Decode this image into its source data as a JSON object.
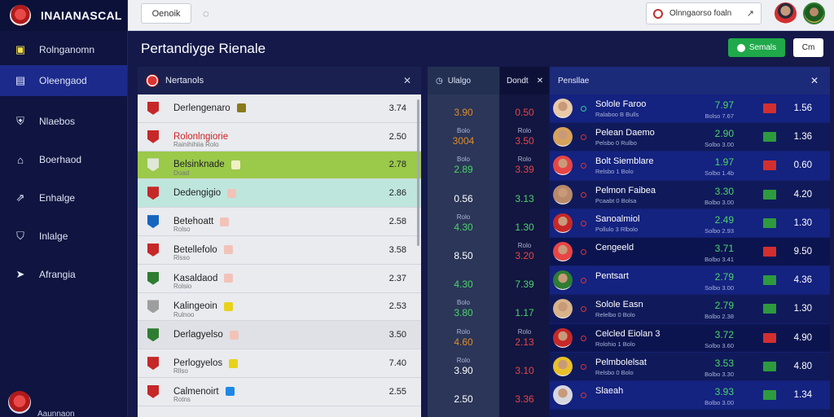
{
  "brand": {
    "name": "INAIANASCAL"
  },
  "sidebar": {
    "items": [
      {
        "label": "Rolnganomn",
        "icon": "building-icon",
        "active": false
      },
      {
        "label": "Oleengaod",
        "icon": "card-icon",
        "active": true
      },
      {
        "label": "Nlaebos",
        "icon": "shield-icon",
        "active": false
      },
      {
        "label": "Boerhaod",
        "icon": "home-icon",
        "active": false
      },
      {
        "label": "Enhalge",
        "icon": "chart-icon",
        "active": false
      },
      {
        "label": "Inlalge",
        "icon": "shirt-icon",
        "active": false
      },
      {
        "label": "Afrangia",
        "icon": "arrow-icon",
        "active": false
      }
    ],
    "footer_text": "Aaunnaon"
  },
  "topbar": {
    "button_label": "Oenoik",
    "search_text": "Olnngaorso foaln"
  },
  "page": {
    "title": "Pertandiyge Rienale",
    "green_button": "Semals",
    "white_button": "Cm"
  },
  "left_panel": {
    "title": "Nertanols",
    "rows": [
      {
        "name": "Derlengenaro",
        "sub": "",
        "value": "3.74",
        "style": "",
        "badge": "#c62828",
        "chip": "#8a7a1a"
      },
      {
        "name": "Rolonlngiorie",
        "sub": "Rainihihiia   Rolo",
        "value": "2.50",
        "style": "red",
        "badge": "#c62828",
        "chip": ""
      },
      {
        "name": "Belsinknade",
        "sub": "Doad",
        "value": "2.78",
        "style": "green",
        "badge": "#dfe8d6",
        "chip": "#f0f0c8"
      },
      {
        "name": "Dedengigio",
        "sub": "",
        "value": "2.86",
        "style": "mint",
        "badge": "#c62828",
        "chip": "#f2c3b8"
      },
      {
        "name": "Betehoatt",
        "sub": "Rolso",
        "value": "2.58",
        "style": "",
        "badge": "#1565c0",
        "chip": "#f2c3b8"
      },
      {
        "name": "Betellefolo",
        "sub": "Rlsso",
        "value": "3.58",
        "style": "",
        "badge": "#c62828",
        "chip": "#f2c3b8"
      },
      {
        "name": "Kasaldaod",
        "sub": "Rolsio",
        "value": "2.37",
        "style": "",
        "badge": "#2e7d32",
        "chip": "#f2c3b8"
      },
      {
        "name": "Kalingeoin",
        "sub": "Rulnoo",
        "value": "2.53",
        "style": "",
        "badge": "#9e9e9e",
        "chip": "#e8d21a"
      },
      {
        "name": "Derlagyelso",
        "sub": "",
        "value": "3.50",
        "style": "sel",
        "badge": "#2e7d32",
        "chip": "#f2c3b8"
      },
      {
        "name": "Perlogyelos",
        "sub": "Rllso",
        "value": "7.40",
        "style": "",
        "badge": "#c62828",
        "chip": "#e8d21a"
      },
      {
        "name": "Calmenoirt",
        "sub": "Rotns",
        "value": "2.55",
        "style": "",
        "badge": "#c62828",
        "chip": "#1e88e5"
      }
    ]
  },
  "mid_panel": {
    "title": "Ulalgo",
    "cells": [
      {
        "sub": "",
        "value": "3.90",
        "color": "#e08a2a"
      },
      {
        "sub": "Bolo",
        "value": "3004",
        "color": "#e08a2a"
      },
      {
        "sub": "Bolo",
        "value": "2.89",
        "color": "#4cd46a"
      },
      {
        "sub": "",
        "value": "0.56",
        "color": "#ffffff"
      },
      {
        "sub": "Rolo",
        "value": "4.30",
        "color": "#4cd46a"
      },
      {
        "sub": "",
        "value": "8.50",
        "color": "#ffffff"
      },
      {
        "sub": "",
        "value": "4.30",
        "color": "#4cd46a"
      },
      {
        "sub": "Bolo",
        "value": "3.80",
        "color": "#4cd46a"
      },
      {
        "sub": "Rolo",
        "value": "4.60",
        "color": "#e08a2a"
      },
      {
        "sub": "Rolo",
        "value": "3.90",
        "color": "#ffffff"
      },
      {
        "sub": "",
        "value": "2.50",
        "color": "#ffffff"
      }
    ]
  },
  "mid2_panel": {
    "title": "Dondt",
    "cells": [
      {
        "sub": "",
        "value": "0.50",
        "color": "#e84545"
      },
      {
        "sub": "Rolo",
        "value": "3.50",
        "color": "#e84545"
      },
      {
        "sub": "Rolo",
        "value": "3.39",
        "color": "#e84545"
      },
      {
        "sub": "",
        "value": "3.13",
        "color": "#4cd46a"
      },
      {
        "sub": "",
        "value": "1.30",
        "color": "#4cd46a"
      },
      {
        "sub": "Rolo",
        "value": "3.20",
        "color": "#e84545"
      },
      {
        "sub": "",
        "value": "7.39",
        "color": "#4cd46a"
      },
      {
        "sub": "",
        "value": "1.17",
        "color": "#4cd46a"
      },
      {
        "sub": "Rolo",
        "value": "2.13",
        "color": "#e84545"
      },
      {
        "sub": "",
        "value": "3.10",
        "color": "#e84545"
      },
      {
        "sub": "",
        "value": "3.36",
        "color": "#e84545"
      }
    ]
  },
  "right_panel": {
    "title": "Pensllae",
    "rows": [
      {
        "name": "Solole Faroo",
        "sub": "Ralaboo  B Bulls",
        "stat": "7.97",
        "stat_sub": "Bolso 7.67",
        "flag": "r",
        "value": "1.56",
        "avatar": "#e8c9a8",
        "dot": "g"
      },
      {
        "name": "Pelean Daemo",
        "sub": "Pelsbo 0 Rulbo",
        "stat": "2.90",
        "stat_sub": "Solbo 3.00",
        "flag": "g",
        "value": "1.36",
        "avatar": "#d7a25a",
        "dot": ""
      },
      {
        "name": "Bolt Siemblare",
        "sub": "Relsbo 1 Bolo",
        "stat": "1.97",
        "stat_sub": "Solbo 1.4b",
        "flag": "r",
        "value": "0.60",
        "avatar": "#e84545",
        "dot": ""
      },
      {
        "name": "Pelmon Faibea",
        "sub": "Pcaabt 0 Bolsa",
        "stat": "3.30",
        "stat_sub": "Bolbo 3.00",
        "flag": "g",
        "value": "4.20",
        "avatar": "#b98a6a",
        "dot": ""
      },
      {
        "name": "Sanoalmiol",
        "sub": "Pollulo 3 Rlbolo",
        "stat": "2.49",
        "stat_sub": "Solbo 2.93",
        "flag": "g",
        "value": "1.30",
        "avatar": "#c62828",
        "dot": ""
      },
      {
        "name": "Cengeeld",
        "sub": "",
        "stat": "3.71",
        "stat_sub": "Bolbo 3.41",
        "flag": "r",
        "value": "9.50",
        "avatar": "#e84545",
        "dot": ""
      },
      {
        "name": "Pentsart",
        "sub": "",
        "stat": "2.79",
        "stat_sub": "Solbo 3.00",
        "flag": "g",
        "value": "4.36",
        "avatar": "#2e7d32",
        "dot": ""
      },
      {
        "name": "Solole Easn",
        "sub": "Relelbo 0 Bolo",
        "stat": "2.79",
        "stat_sub": "Bolbo 2.38",
        "flag": "g",
        "value": "1.30",
        "avatar": "#d9b38a",
        "dot": ""
      },
      {
        "name": "Celcled Eiolan 3",
        "sub": "Rolohio 1 Bolo",
        "stat": "3.72",
        "stat_sub": "Solbo 3.60",
        "flag": "r",
        "value": "4.90",
        "avatar": "#c62828",
        "dot": ""
      },
      {
        "name": "Pelmbolelsat",
        "sub": "Relsbo 0 Bolo",
        "stat": "3.53",
        "stat_sub": "Bolbo 3.30",
        "flag": "g",
        "value": "4.80",
        "avatar": "#e8c02a",
        "dot": ""
      },
      {
        "name": "Slaeah",
        "sub": "",
        "stat": "3.93",
        "stat_sub": "Bolbo 3.00",
        "flag": "g",
        "value": "1.34",
        "avatar": "#d7d7e0",
        "dot": ""
      }
    ]
  }
}
